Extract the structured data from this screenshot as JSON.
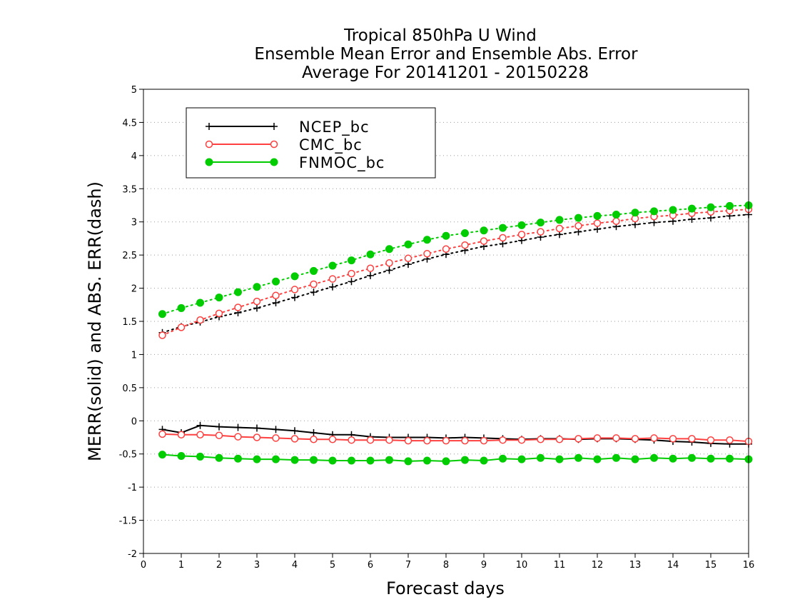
{
  "chart_data": {
    "type": "line",
    "title": [
      "Tropical 850hPa U Wind",
      "Ensemble Mean Error and Ensemble Abs. Error",
      "Average For 20141201 - 20150228"
    ],
    "xlabel": "Forecast days",
    "ylabel": "MERR(solid) and ABS. ERR(dash)",
    "xlim": [
      0,
      16
    ],
    "ylim": [
      -2,
      5
    ],
    "x_ticks": [
      "0",
      "1",
      "2",
      "3",
      "4",
      "5",
      "6",
      "7",
      "8",
      "9",
      "10",
      "11",
      "12",
      "13",
      "14",
      "15",
      "16"
    ],
    "y_ticks": [
      "-2",
      "-1.5",
      "-1",
      "-0.5",
      "0",
      "0.5",
      "1",
      "1.5",
      "2",
      "2.5",
      "3",
      "3.5",
      "4",
      "4.5",
      "5"
    ],
    "grid": "horizontal-dotted",
    "legend_position": "top-left",
    "x": [
      0.5,
      1,
      1.5,
      2,
      2.5,
      3,
      3.5,
      4,
      4.5,
      5,
      5.5,
      6,
      6.5,
      7,
      7.5,
      8,
      8.5,
      9,
      9.5,
      10,
      10.5,
      11,
      11.5,
      12,
      12.5,
      13,
      13.5,
      14,
      14.5,
      15,
      15.5,
      16
    ],
    "series": [
      {
        "name": "NCEP_bc",
        "color": "#000000",
        "marker": "plus",
        "merr": [
          -0.13,
          -0.18,
          -0.07,
          -0.09,
          -0.1,
          -0.11,
          -0.13,
          -0.15,
          -0.18,
          -0.21,
          -0.21,
          -0.24,
          -0.25,
          -0.25,
          -0.25,
          -0.26,
          -0.25,
          -0.26,
          -0.27,
          -0.28,
          -0.27,
          -0.27,
          -0.28,
          -0.27,
          -0.27,
          -0.28,
          -0.29,
          -0.31,
          -0.32,
          -0.34,
          -0.35,
          -0.35
        ],
        "abserr": [
          1.33,
          1.42,
          1.49,
          1.57,
          1.63,
          1.7,
          1.78,
          1.86,
          1.94,
          2.02,
          2.1,
          2.19,
          2.27,
          2.36,
          2.44,
          2.51,
          2.57,
          2.63,
          2.67,
          2.72,
          2.77,
          2.81,
          2.85,
          2.89,
          2.93,
          2.96,
          2.99,
          3.01,
          3.04,
          3.06,
          3.09,
          3.11
        ]
      },
      {
        "name": "CMC_bc",
        "color": "#ff4040",
        "marker": "open-circle",
        "merr": [
          -0.2,
          -0.21,
          -0.21,
          -0.22,
          -0.24,
          -0.25,
          -0.26,
          -0.27,
          -0.28,
          -0.28,
          -0.29,
          -0.29,
          -0.29,
          -0.3,
          -0.3,
          -0.3,
          -0.3,
          -0.3,
          -0.29,
          -0.29,
          -0.28,
          -0.28,
          -0.27,
          -0.26,
          -0.26,
          -0.27,
          -0.26,
          -0.27,
          -0.27,
          -0.29,
          -0.29,
          -0.31
        ],
        "abserr": [
          1.29,
          1.41,
          1.52,
          1.62,
          1.71,
          1.8,
          1.89,
          1.98,
          2.06,
          2.14,
          2.22,
          2.3,
          2.38,
          2.45,
          2.52,
          2.59,
          2.65,
          2.71,
          2.76,
          2.81,
          2.85,
          2.9,
          2.94,
          2.98,
          3.01,
          3.05,
          3.08,
          3.1,
          3.13,
          3.15,
          3.17,
          3.19
        ]
      },
      {
        "name": "FNMOC_bc",
        "color": "#00cc00",
        "marker": "filled-circle",
        "merr": [
          -0.51,
          -0.53,
          -0.54,
          -0.56,
          -0.57,
          -0.58,
          -0.58,
          -0.59,
          -0.59,
          -0.6,
          -0.6,
          -0.6,
          -0.59,
          -0.61,
          -0.6,
          -0.61,
          -0.59,
          -0.6,
          -0.57,
          -0.58,
          -0.56,
          -0.58,
          -0.56,
          -0.58,
          -0.56,
          -0.58,
          -0.56,
          -0.57,
          -0.56,
          -0.57,
          -0.57,
          -0.58
        ],
        "abserr": [
          1.61,
          1.7,
          1.78,
          1.86,
          1.94,
          2.02,
          2.1,
          2.18,
          2.26,
          2.34,
          2.42,
          2.51,
          2.59,
          2.66,
          2.73,
          2.79,
          2.83,
          2.87,
          2.91,
          2.95,
          2.99,
          3.03,
          3.06,
          3.09,
          3.11,
          3.14,
          3.16,
          3.18,
          3.2,
          3.22,
          3.24,
          3.25
        ]
      }
    ]
  }
}
